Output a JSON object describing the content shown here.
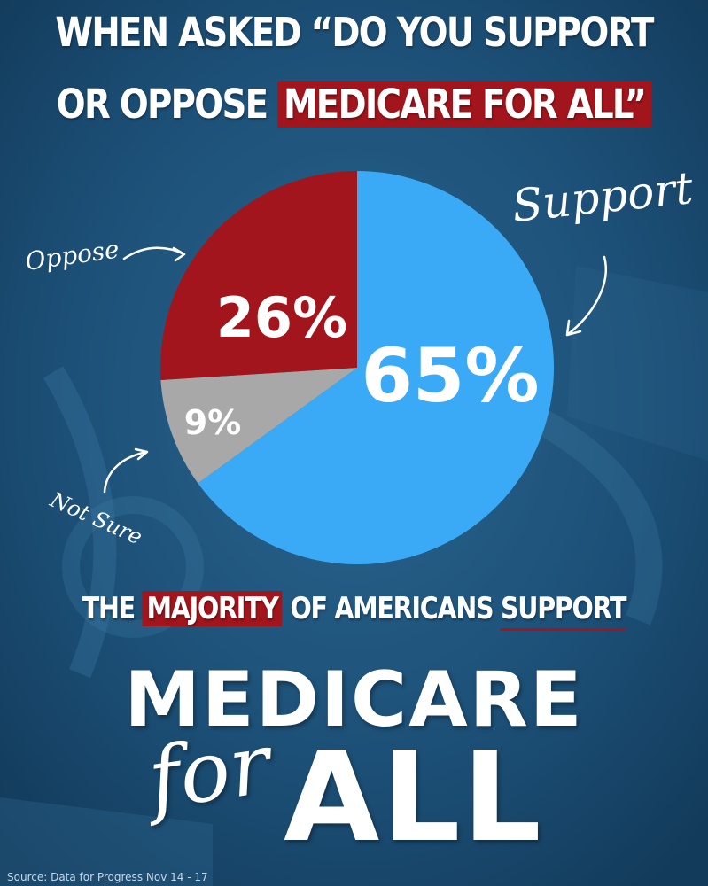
{
  "headline": {
    "line1": "WHEN ASKED “DO YOU SUPPORT",
    "line2_prefix": "OR OPPOSE",
    "line2_highlight": "MEDICARE FOR ALL”"
  },
  "chart_data": {
    "type": "pie",
    "slices": [
      {
        "label": "Support",
        "value": 65,
        "value_label": "65%",
        "color": "#3aaaf6"
      },
      {
        "label": "Not Sure",
        "value": 9,
        "value_label": "9%",
        "color": "#a8a8a8"
      },
      {
        "label": "Oppose",
        "value": 26,
        "value_label": "26%",
        "color": "#a3151c"
      }
    ]
  },
  "tagline": {
    "prefix": "THE",
    "highlight": "MAJORITY",
    "middle": "OF AMERICANS",
    "underlined": "SUPPORT"
  },
  "brand": {
    "line1": "MEDICARE",
    "for": "for",
    "all": "ALL"
  },
  "source": "Source: Data for Progress Nov 14 - 17",
  "colors": {
    "background": "#1b4e73",
    "accent_red": "#a3151c",
    "support_blue": "#3aaaf6",
    "not_sure_gray": "#a8a8a8"
  }
}
